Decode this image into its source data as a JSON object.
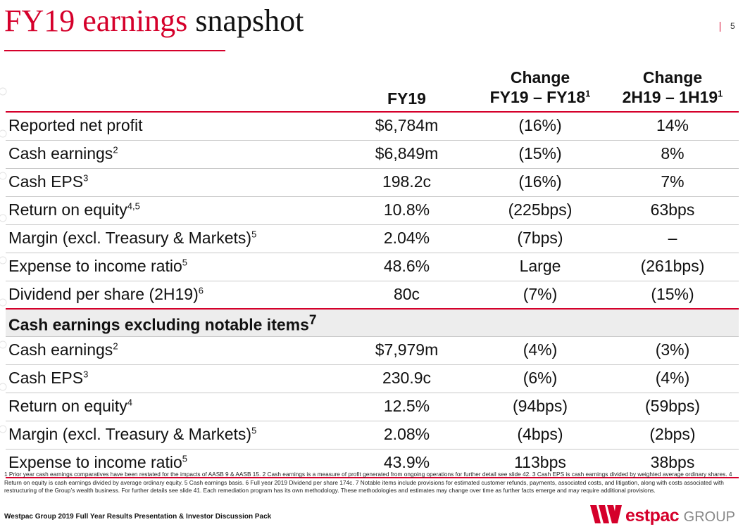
{
  "title": {
    "part1": "FY19 earnings",
    "part2": "snapshot"
  },
  "page_number": "5",
  "headers": {
    "col1": "FY19",
    "col2_line1": "Change",
    "col2_line2": "FY19 – FY18",
    "col2_sup": "1",
    "col3_line1": "Change",
    "col3_line2": "2H19 – 1H19",
    "col3_sup": "1"
  },
  "rows": [
    {
      "label": "Reported net profit",
      "sup": "",
      "fy19": "$6,784m",
      "chg_fy": "(16%)",
      "chg_h": "14%"
    },
    {
      "label": "Cash earnings",
      "sup": "2",
      "fy19": "$6,849m",
      "chg_fy": "(15%)",
      "chg_h": "8%"
    },
    {
      "label": "Cash EPS",
      "sup": "3",
      "fy19": "198.2c",
      "chg_fy": "(16%)",
      "chg_h": "7%"
    },
    {
      "label": "Return on equity",
      "sup": "4,5",
      "fy19": "10.8%",
      "chg_fy": "(225bps)",
      "chg_h": "63bps"
    },
    {
      "label": "Margin (excl. Treasury & Markets)",
      "sup": "5",
      "fy19": "2.04%",
      "chg_fy": "(7bps)",
      "chg_h": "–"
    },
    {
      "label": "Expense to income ratio",
      "sup": "5",
      "fy19": "48.6%",
      "chg_fy": "Large",
      "chg_h": "(261bps)"
    },
    {
      "label": "Dividend per share (2H19)",
      "sup": "6",
      "fy19": "80c",
      "chg_fy": "(7%)",
      "chg_h": "(15%)"
    }
  ],
  "section": {
    "label": "Cash earnings excluding notable items",
    "sup": "7"
  },
  "rows2": [
    {
      "label": "Cash earnings",
      "sup": "2",
      "fy19": "$7,979m",
      "chg_fy": "(4%)",
      "chg_h": "(3%)"
    },
    {
      "label": "Cash EPS",
      "sup": "3",
      "fy19": "230.9c",
      "chg_fy": "(6%)",
      "chg_h": "(4%)"
    },
    {
      "label": "Return on equity",
      "sup": "4",
      "fy19": "12.5%",
      "chg_fy": "(94bps)",
      "chg_h": "(59bps)"
    },
    {
      "label": "Margin (excl. Treasury & Markets)",
      "sup": "5",
      "fy19": "2.08%",
      "chg_fy": "(4bps)",
      "chg_h": "(2bps)"
    },
    {
      "label": "Expense to income ratio",
      "sup": "5",
      "fy19": "43.9%",
      "chg_fy": "113bps",
      "chg_h": "38bps"
    }
  ],
  "footnote": "1 Prior year cash earnings comparatives have been restated for the impacts of AASB 9 & AASB 15.  2 Cash earnings is a measure of profit generated from ongoing operations for further detail see slide 42.  3 Cash EPS is cash earnings divided by weighted average ordinary shares. 4 Return on equity is cash earnings divided by average ordinary equity. 5 Cash earnings basis.  6 Full year 2019 Dividend per share 174c.  7 Notable items include provisions for estimated customer refunds, payments, associated costs, and litigation, along with costs associated with restructuring of the Group’s wealth business. For further details see slide 41. Each remediation program has its own methodology.  These methodologies and estimates may change over time as further facts emerge and may require additional provisions.",
  "footer": "Westpac Group 2019 Full Year Results Presentation & Investor Discussion Pack",
  "logo": {
    "brand": "estpac",
    "group": "GROUP"
  },
  "colors": {
    "accent": "#d5002b",
    "section_bg": "#ededed"
  }
}
